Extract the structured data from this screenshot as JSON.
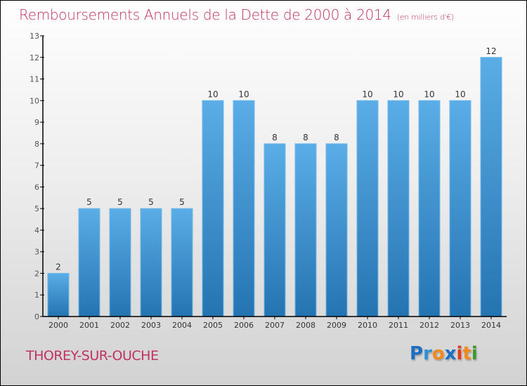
{
  "title": "Remboursements Annuels de la Dette de 2000 à 2014",
  "unit": "(en milliers d'€)",
  "city": "THOREY-SUR-OUCHE",
  "logo": {
    "letters": [
      {
        "char": "P",
        "color": "#1a6fc4"
      },
      {
        "char": "r",
        "color": "#2b8fd6"
      },
      {
        "char": "o",
        "color": "#f08a1c"
      },
      {
        "char": "x",
        "color": "#1a6fc4"
      },
      {
        "char": "i",
        "color": "#e53a1f"
      },
      {
        "char": "t",
        "color": "#f08a1c"
      },
      {
        "char": "i",
        "color": "#3a9a2e"
      }
    ]
  },
  "colors": {
    "bar_top": "#5aade6",
    "bar_bottom": "#2474b2",
    "title": "#c0325f"
  },
  "chart_data": {
    "type": "bar",
    "title": "Remboursements Annuels de la Dette de 2000 à 2014",
    "subtitle": "(en milliers d'€)",
    "xlabel": "",
    "ylabel": "",
    "categories": [
      "2000",
      "2001",
      "2002",
      "2003",
      "2004",
      "2005",
      "2006",
      "2007",
      "2008",
      "2009",
      "2010",
      "2011",
      "2012",
      "2013",
      "2014"
    ],
    "values": [
      2,
      5,
      5,
      5,
      5,
      10,
      10,
      8,
      8,
      8,
      10,
      10,
      10,
      10,
      12
    ],
    "ylim": [
      0,
      13
    ],
    "yticks": [
      0,
      1,
      2,
      3,
      4,
      5,
      6,
      7,
      8,
      9,
      10,
      11,
      12,
      13
    ],
    "grid": false,
    "legend": "none"
  }
}
